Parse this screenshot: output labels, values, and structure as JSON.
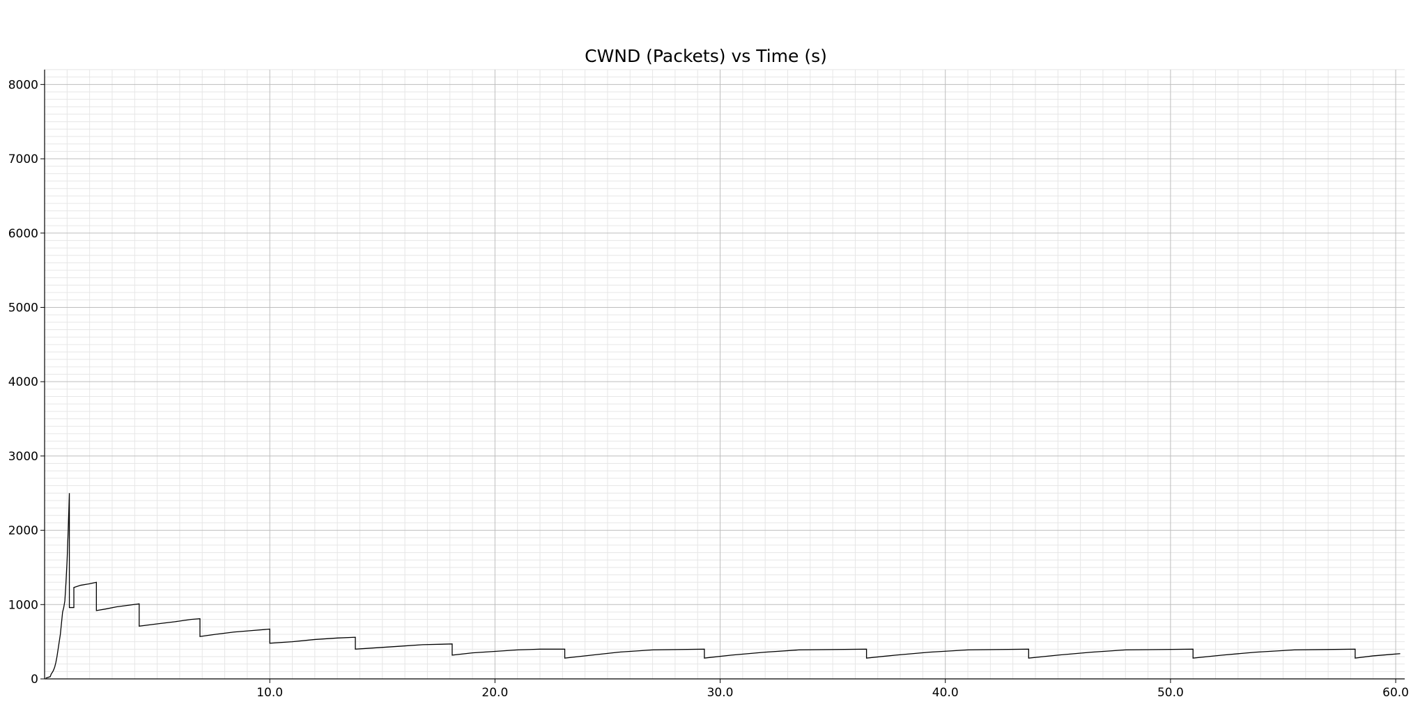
{
  "chart_data": {
    "type": "line",
    "title": "CWND (Packets) vs Time (s)",
    "xlabel": "",
    "ylabel": "",
    "xlim": [
      0,
      60.4
    ],
    "ylim": [
      0,
      8200
    ],
    "x_ticks": [
      10,
      20,
      30,
      40,
      50,
      60
    ],
    "x_tick_labels": [
      "10.0",
      "20.0",
      "30.0",
      "40.0",
      "50.0",
      "60.0"
    ],
    "y_ticks": [
      0,
      1000,
      2000,
      3000,
      4000,
      5000,
      6000,
      7000,
      8000
    ],
    "y_tick_labels": [
      "0",
      "1000",
      "2000",
      "3000",
      "4000",
      "5000",
      "6000",
      "7000",
      "8000"
    ],
    "grid": true,
    "minor_grid": true,
    "line_color": "#000000",
    "series": [
      {
        "points": [
          [
            0.05,
            10
          ],
          [
            0.15,
            20
          ],
          [
            0.25,
            30
          ],
          [
            0.3,
            70
          ],
          [
            0.35,
            90
          ],
          [
            0.4,
            120
          ],
          [
            0.45,
            160
          ],
          [
            0.5,
            220
          ],
          [
            0.55,
            300
          ],
          [
            0.6,
            400
          ],
          [
            0.65,
            500
          ],
          [
            0.7,
            600
          ],
          [
            0.75,
            750
          ],
          [
            0.8,
            900
          ],
          [
            0.85,
            960
          ],
          [
            0.9,
            1050
          ],
          [
            0.95,
            1300
          ],
          [
            1.0,
            1600
          ],
          [
            1.05,
            2000
          ],
          [
            1.08,
            2300
          ],
          [
            1.1,
            2500
          ],
          [
            1.1,
            960
          ],
          [
            1.3,
            960
          ],
          [
            1.3,
            1230
          ],
          [
            1.6,
            1260
          ],
          [
            2.0,
            1280
          ],
          [
            2.3,
            1300
          ],
          [
            2.3,
            920
          ],
          [
            2.7,
            940
          ],
          [
            3.2,
            970
          ],
          [
            3.7,
            990
          ],
          [
            4.2,
            1010
          ],
          [
            4.2,
            710
          ],
          [
            5.0,
            740
          ],
          [
            5.8,
            770
          ],
          [
            6.5,
            800
          ],
          [
            6.9,
            810
          ],
          [
            6.9,
            570
          ],
          [
            7.6,
            600
          ],
          [
            8.4,
            630
          ],
          [
            9.2,
            650
          ],
          [
            10.0,
            670
          ],
          [
            10.0,
            480
          ],
          [
            11.0,
            500
          ],
          [
            12.0,
            530
          ],
          [
            13.0,
            550
          ],
          [
            13.8,
            560
          ],
          [
            13.8,
            400
          ],
          [
            14.8,
            420
          ],
          [
            15.8,
            440
          ],
          [
            16.8,
            460
          ],
          [
            18.1,
            470
          ],
          [
            18.1,
            320
          ],
          [
            19.0,
            350
          ],
          [
            20.0,
            370
          ],
          [
            21.0,
            390
          ],
          [
            22.0,
            400
          ],
          [
            23.1,
            400
          ],
          [
            23.1,
            280
          ],
          [
            24.3,
            320
          ],
          [
            25.5,
            360
          ],
          [
            27.0,
            390
          ],
          [
            29.3,
            400
          ],
          [
            29.3,
            280
          ],
          [
            30.5,
            320
          ],
          [
            32.0,
            360
          ],
          [
            33.5,
            390
          ],
          [
            36.5,
            400
          ],
          [
            36.5,
            280
          ],
          [
            37.8,
            320
          ],
          [
            39.3,
            360
          ],
          [
            41.0,
            390
          ],
          [
            43.7,
            400
          ],
          [
            43.7,
            280
          ],
          [
            45.0,
            320
          ],
          [
            46.5,
            360
          ],
          [
            48.0,
            390
          ],
          [
            51.0,
            400
          ],
          [
            51.0,
            280
          ],
          [
            52.3,
            320
          ],
          [
            53.8,
            360
          ],
          [
            55.5,
            390
          ],
          [
            58.2,
            400
          ],
          [
            58.2,
            280
          ],
          [
            59.0,
            310
          ],
          [
            59.8,
            330
          ],
          [
            60.2,
            340
          ]
        ]
      }
    ]
  }
}
